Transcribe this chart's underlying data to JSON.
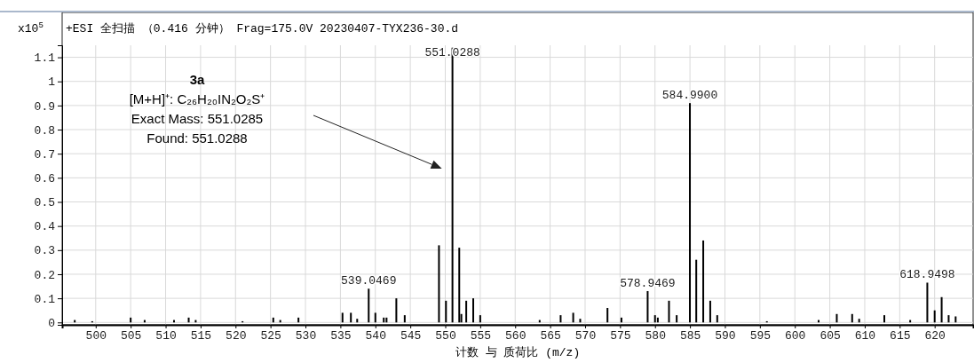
{
  "chart_data": {
    "type": "bar",
    "title": "+ESI 全扫描 （0.416 分钟） Frag=175.0V 20230407-TYX236-30.d",
    "ylabel": "x10$^{5}$",
    "xlabel": "计数 与 质荷比 (m/z)",
    "annotations": [
      "3a",
      "[M+H]⁺: C₂₆H₂₀IN₂O₂S⁺",
      "Exact Mass: 551.0285",
      "Found: 551.0288",
      {
        "text": "539.0469",
        "x": 539.0469,
        "y": 0.14
      },
      {
        "text": "551.0288",
        "x": 551.0288,
        "y": 1.14
      },
      {
        "text": "578.9469",
        "x": 578.9469,
        "y": 0.13
      },
      {
        "text": "584.9900",
        "x": 584.99,
        "y": 0.91
      },
      {
        "text": "618.9498",
        "x": 618.9498,
        "y": 0.165
      }
    ],
    "x": [
      497.0,
      499.5,
      505.0,
      507.0,
      511.2,
      513.3,
      514.3,
      521.0,
      525.4,
      526.4,
      529.0,
      535.3,
      536.5,
      537.4,
      539.0469,
      540.0,
      541.2,
      541.6,
      543.0,
      544.2,
      549.1,
      550.1,
      551.0288,
      552.0,
      552.3,
      553.0,
      554.0,
      555.0,
      563.5,
      566.5,
      568.3,
      569.3,
      573.2,
      575.2,
      578.9469,
      580.0,
      580.4,
      582.0,
      583.1,
      584.99,
      585.9,
      586.9,
      587.9,
      588.9,
      596.0,
      603.4,
      606.0,
      608.2,
      609.2,
      612.8,
      616.5,
      618.9498,
      620.0,
      621.0,
      622.0,
      623.0
    ],
    "values": [
      0.01,
      0.005,
      0.02,
      0.01,
      0.01,
      0.02,
      0.01,
      0.005,
      0.02,
      0.01,
      0.02,
      0.04,
      0.04,
      0.015,
      0.14,
      0.04,
      0.02,
      0.02,
      0.1,
      0.03,
      0.32,
      0.09,
      1.14,
      0.31,
      0.035,
      0.09,
      0.1,
      0.03,
      0.01,
      0.03,
      0.04,
      0.015,
      0.06,
      0.02,
      0.13,
      0.03,
      0.02,
      0.09,
      0.03,
      0.91,
      0.26,
      0.34,
      0.09,
      0.03,
      0.005,
      0.01,
      0.035,
      0.035,
      0.015,
      0.03,
      0.01,
      0.165,
      0.05,
      0.105,
      0.03,
      0.025
    ],
    "color": "#000000",
    "xlim": [
      495.2,
      625.5
    ],
    "xticks": [
      500,
      505,
      510,
      515,
      520,
      525,
      530,
      535,
      540,
      545,
      550,
      555,
      560,
      565,
      570,
      575,
      580,
      585,
      590,
      595,
      600,
      605,
      610,
      615,
      620
    ],
    "ylim": [
      -0.01,
      1.15
    ],
    "yticks": [
      0,
      0.1,
      0.2,
      0.3,
      0.4,
      0.5,
      0.6,
      0.7,
      0.8,
      0.9,
      1,
      1.1
    ],
    "grid": true
  }
}
